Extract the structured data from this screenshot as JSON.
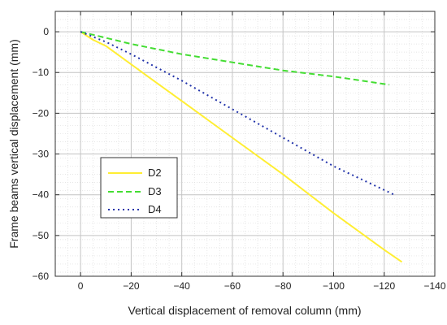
{
  "chart_data": {
    "type": "line",
    "xlabel": "Vertical displacement of removal column (mm)",
    "ylabel": "Frame beams vertical displacement (mm)",
    "xlim": [
      10,
      -140
    ],
    "ylim": [
      -60,
      5
    ],
    "x_ticks": [
      0,
      -20,
      -40,
      -60,
      -80,
      -100,
      -120,
      -140
    ],
    "y_ticks": [
      0,
      -10,
      -20,
      -30,
      -40,
      -50,
      -60
    ],
    "grid": true,
    "legend_position": "lower-left",
    "series": [
      {
        "name": "D2",
        "color": "#ffee33",
        "style": "solid",
        "points": [
          [
            0,
            0
          ],
          [
            -5,
            -2
          ],
          [
            -10,
            -3.5
          ],
          [
            -20,
            -8
          ],
          [
            -30,
            -12.5
          ],
          [
            -40,
            -17
          ],
          [
            -60,
            -26
          ],
          [
            -80,
            -35
          ],
          [
            -100,
            -44.5
          ],
          [
            -120,
            -53.5
          ],
          [
            -127,
            -56.5
          ]
        ]
      },
      {
        "name": "D3",
        "color": "#44dd33",
        "style": "dashed",
        "points": [
          [
            0,
            0
          ],
          [
            -10,
            -1.5
          ],
          [
            -20,
            -3
          ],
          [
            -40,
            -5.5
          ],
          [
            -60,
            -7.5
          ],
          [
            -80,
            -9.5
          ],
          [
            -100,
            -11
          ],
          [
            -122,
            -13
          ]
        ]
      },
      {
        "name": "D4",
        "color": "#2233aa",
        "style": "dotted",
        "points": [
          [
            0,
            0
          ],
          [
            -10,
            -2.5
          ],
          [
            -20,
            -5.5
          ],
          [
            -40,
            -12
          ],
          [
            -60,
            -19
          ],
          [
            -80,
            -26
          ],
          [
            -100,
            -33
          ],
          [
            -124,
            -40
          ]
        ]
      }
    ]
  }
}
